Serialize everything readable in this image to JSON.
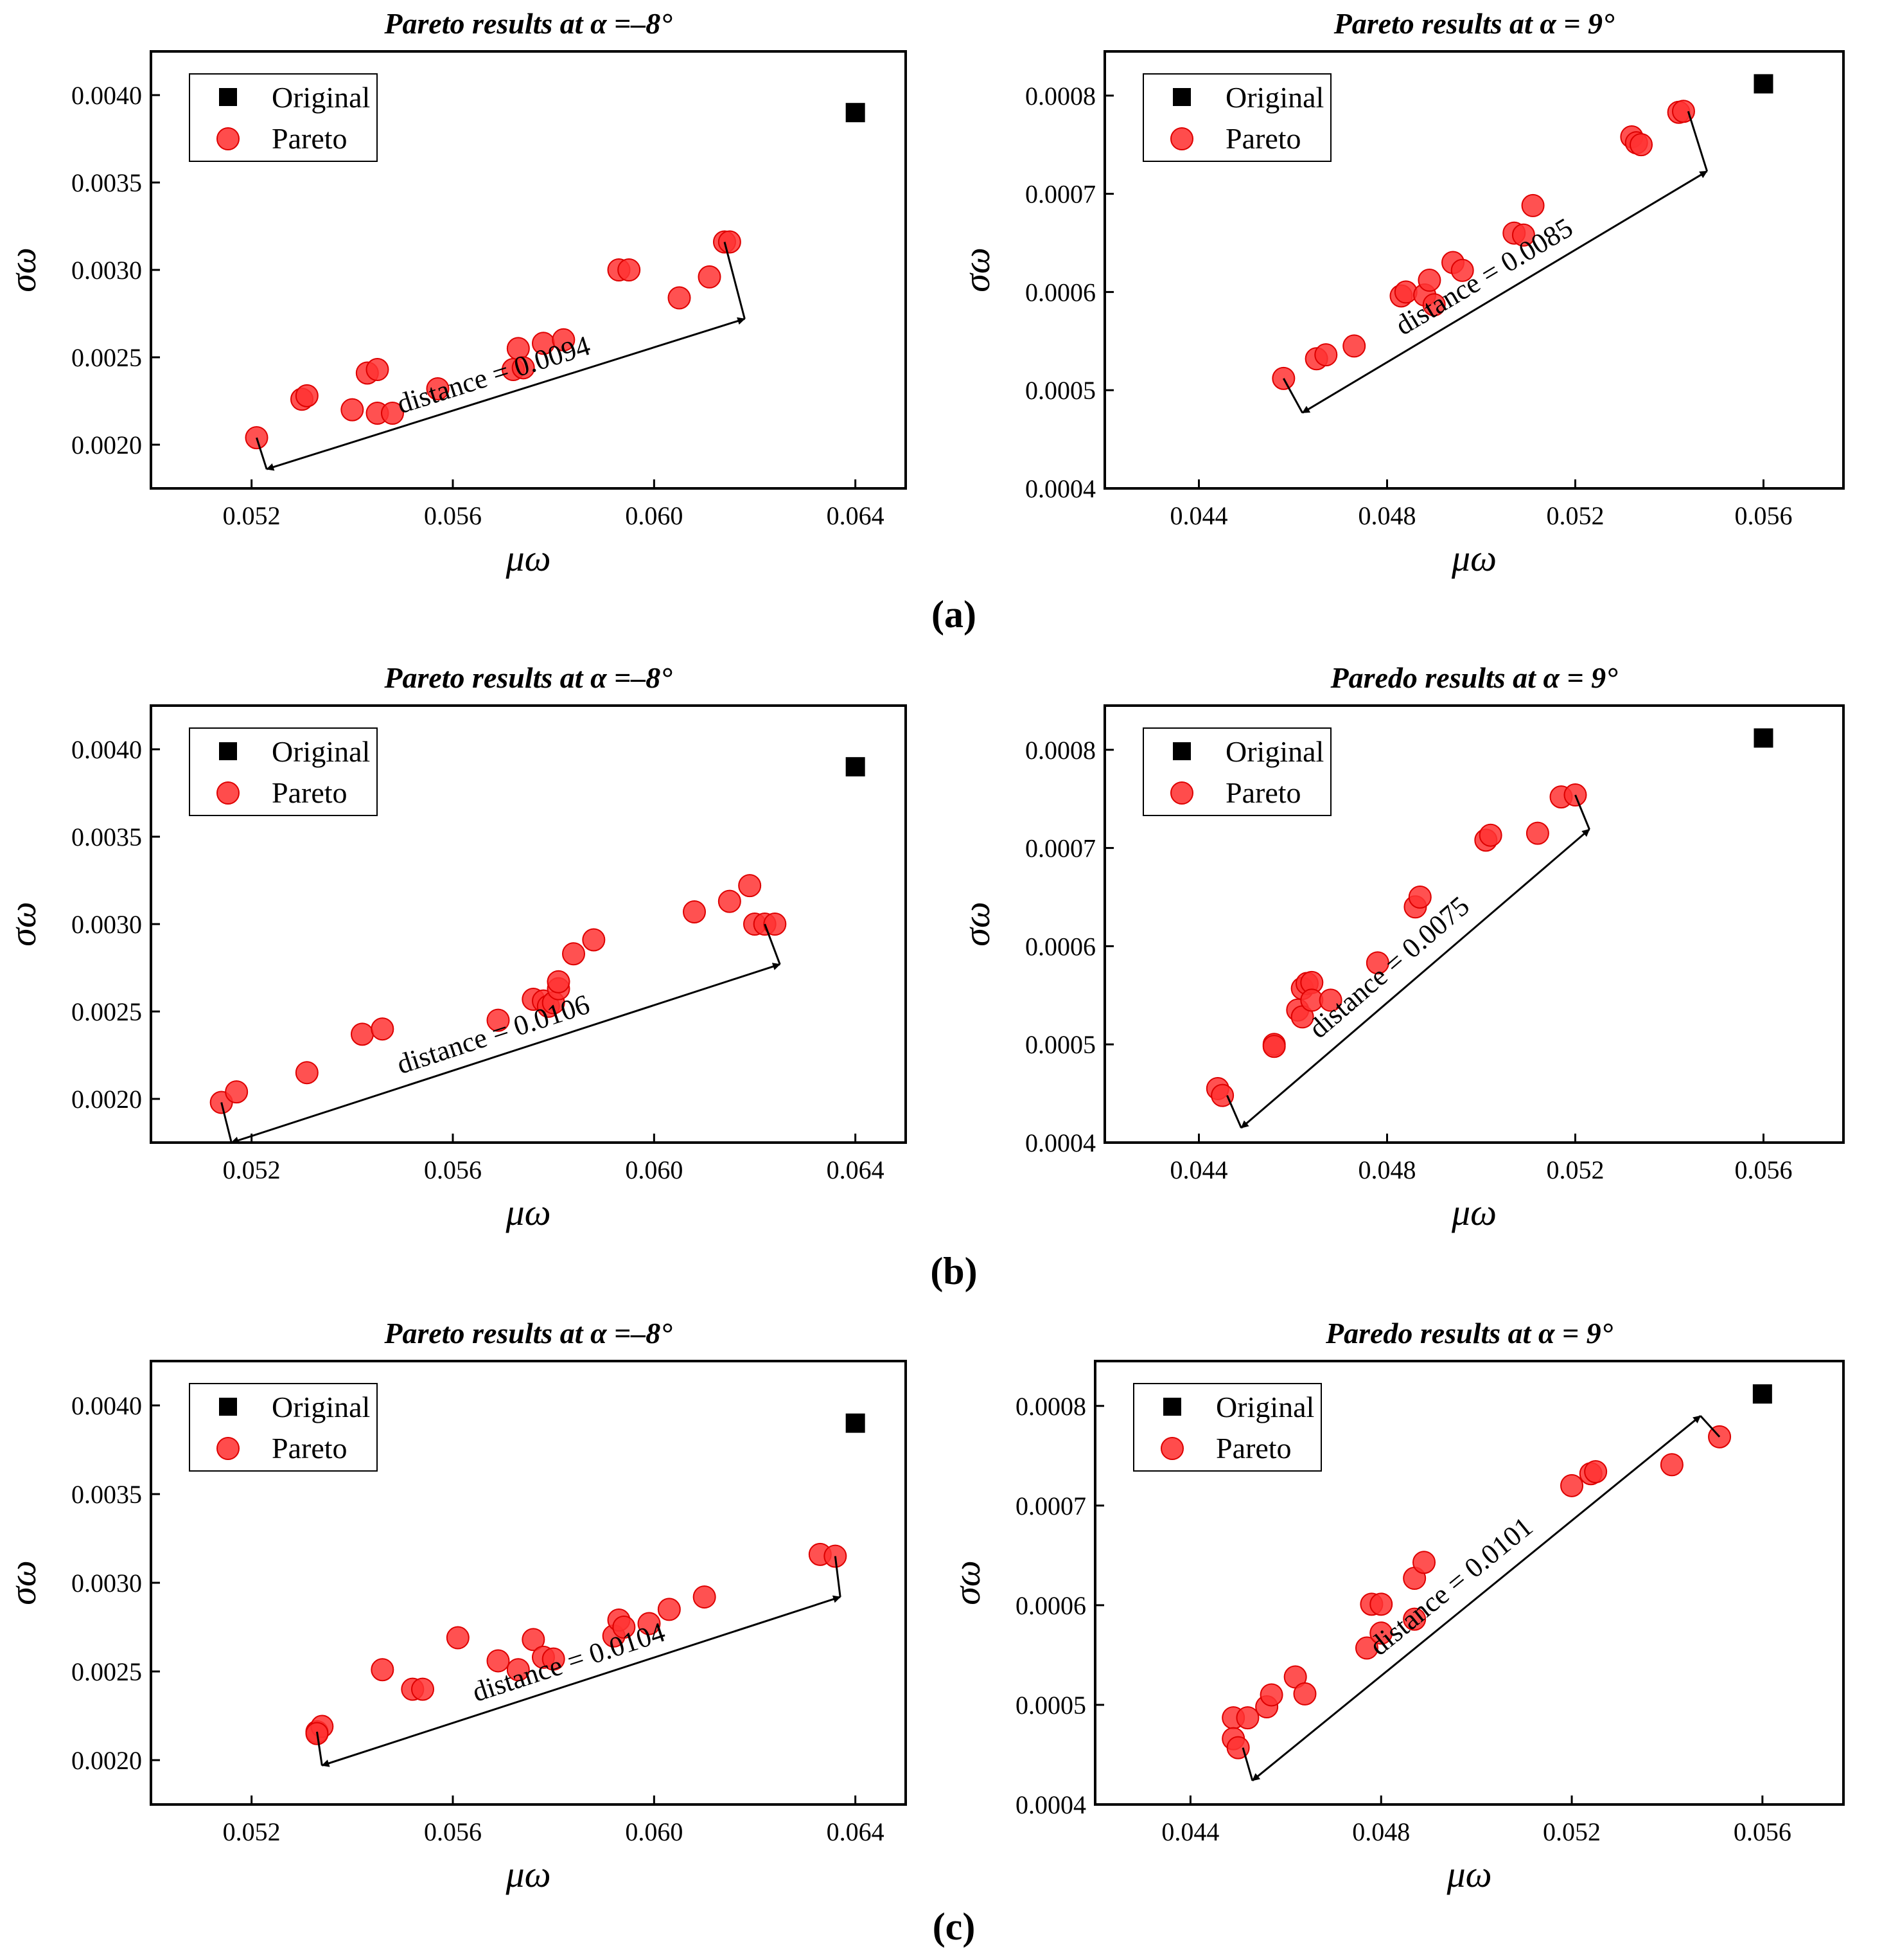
{
  "panel_labels": [
    "(a)",
    "(b)",
    "(c)"
  ],
  "chart_data": [
    {
      "type": "scatter",
      "title": "Pareto results at α =–8°",
      "xlabel": "μω",
      "ylabel": "σω",
      "xlim": [
        0.05,
        0.065
      ],
      "ylim": [
        0.00175,
        0.00425
      ],
      "xticks": [
        "0.052",
        "0.056",
        "0.060",
        "0.064"
      ],
      "yticks": [
        "0.0020",
        "0.0025",
        "0.0030",
        "0.0035",
        "0.0040"
      ],
      "legend": {
        "position": "top-left",
        "original": "Original",
        "pareto": "Pareto"
      },
      "original_point": [
        0.064,
        0.0039
      ],
      "pareto_points": [
        [
          0.0521,
          0.00204
        ],
        [
          0.053,
          0.00226
        ],
        [
          0.0531,
          0.00228
        ],
        [
          0.054,
          0.0022
        ],
        [
          0.0543,
          0.00241
        ],
        [
          0.0545,
          0.00243
        ],
        [
          0.0545,
          0.00218
        ],
        [
          0.0548,
          0.00218
        ],
        [
          0.0557,
          0.00232
        ],
        [
          0.0572,
          0.00243
        ],
        [
          0.0573,
          0.00255
        ],
        [
          0.0574,
          0.00244
        ],
        [
          0.0578,
          0.00258
        ],
        [
          0.0582,
          0.0026
        ],
        [
          0.0593,
          0.003
        ],
        [
          0.0595,
          0.003
        ],
        [
          0.0605,
          0.00284
        ],
        [
          0.0611,
          0.00296
        ],
        [
          0.0614,
          0.00316
        ],
        [
          0.0615,
          0.00316
        ]
      ],
      "distance_label": "distance = 0.0094",
      "arrow": {
        "from": [
          0.0523,
          0.00186
        ],
        "to": [
          0.0618,
          0.00272
        ],
        "tick_ends": [
          [
            0.0521,
            0.00204
          ],
          [
            0.0614,
            0.00316
          ]
        ]
      }
    },
    {
      "type": "scatter",
      "title": "Pareto results at α = 9°",
      "xlabel": "μω",
      "ylabel": "σω",
      "xlim": [
        0.042,
        0.0577
      ],
      "ylim": [
        0.0004,
        0.000845
      ],
      "xticks": [
        "0.044",
        "0.048",
        "0.052",
        "0.056"
      ],
      "yticks": [
        "0.0004",
        "0.0005",
        "0.0006",
        "0.0007",
        "0.0008"
      ],
      "legend": {
        "position": "top-left",
        "original": "Original",
        "pareto": "Pareto"
      },
      "original_point": [
        0.056,
        0.000812
      ],
      "pareto_points": [
        [
          0.0458,
          0.000512
        ],
        [
          0.0465,
          0.000532
        ],
        [
          0.0467,
          0.000536
        ],
        [
          0.0473,
          0.000545
        ],
        [
          0.0483,
          0.000596
        ],
        [
          0.0484,
          0.0006
        ],
        [
          0.0488,
          0.000597
        ],
        [
          0.0489,
          0.000612
        ],
        [
          0.049,
          0.000587
        ],
        [
          0.0494,
          0.00063
        ],
        [
          0.0496,
          0.000622
        ],
        [
          0.0507,
          0.00066
        ],
        [
          0.0509,
          0.000658
        ],
        [
          0.0511,
          0.000688
        ],
        [
          0.0532,
          0.000758
        ],
        [
          0.0533,
          0.000752
        ],
        [
          0.0534,
          0.00075
        ],
        [
          0.0542,
          0.000783
        ],
        [
          0.0543,
          0.000784
        ]
      ],
      "distance_label": "distance = 0.0085",
      "arrow": {
        "from": [
          0.0462,
          0.000477
        ],
        "to": [
          0.0548,
          0.000723
        ],
        "tick_ends": [
          [
            0.0458,
            0.000512
          ],
          [
            0.0544,
            0.000784
          ]
        ]
      }
    },
    {
      "type": "scatter",
      "title": "Pareto results at α =–8°",
      "xlabel": "μω",
      "ylabel": "σω",
      "xlim": [
        0.05,
        0.065
      ],
      "ylim": [
        0.00175,
        0.00425
      ],
      "xticks": [
        "0.052",
        "0.056",
        "0.060",
        "0.064"
      ],
      "yticks": [
        "0.0020",
        "0.0025",
        "0.0030",
        "0.0035",
        "0.0040"
      ],
      "legend": {
        "position": "top-left",
        "original": "Original",
        "pareto": "Pareto"
      },
      "original_point": [
        0.064,
        0.0039
      ],
      "pareto_points": [
        [
          0.0514,
          0.00198
        ],
        [
          0.0517,
          0.00204
        ],
        [
          0.0531,
          0.00215
        ],
        [
          0.0542,
          0.00237
        ],
        [
          0.0546,
          0.0024
        ],
        [
          0.0569,
          0.00245
        ],
        [
          0.0576,
          0.00257
        ],
        [
          0.0578,
          0.00256
        ],
        [
          0.0579,
          0.00253
        ],
        [
          0.058,
          0.00255
        ],
        [
          0.0581,
          0.00263
        ],
        [
          0.0581,
          0.00267
        ],
        [
          0.0584,
          0.00283
        ],
        [
          0.0588,
          0.00291
        ],
        [
          0.0608,
          0.00307
        ],
        [
          0.0615,
          0.00313
        ],
        [
          0.0619,
          0.00322
        ],
        [
          0.062,
          0.003
        ],
        [
          0.0622,
          0.003
        ],
        [
          0.0624,
          0.003
        ]
      ],
      "distance_label": "distance = 0.0106",
      "arrow": {
        "from": [
          0.0516,
          0.00175
        ],
        "to": [
          0.0625,
          0.00277
        ],
        "tick_ends": [
          [
            0.0514,
            0.00198
          ],
          [
            0.0622,
            0.003
          ]
        ]
      }
    },
    {
      "type": "scatter",
      "title": "Paredo results at α = 9°",
      "xlabel": "μω",
      "ylabel": "σω",
      "xlim": [
        0.042,
        0.0577
      ],
      "ylim": [
        0.0004,
        0.000845
      ],
      "xticks": [
        "0.044",
        "0.048",
        "0.052",
        "0.056"
      ],
      "yticks": [
        "0.0004",
        "0.0005",
        "0.0006",
        "0.0007",
        "0.0008"
      ],
      "legend": {
        "position": "top-left",
        "original": "Original",
        "pareto": "Pareto"
      },
      "original_point": [
        0.056,
        0.000812
      ],
      "pareto_points": [
        [
          0.0444,
          0.000455
        ],
        [
          0.0445,
          0.000448
        ],
        [
          0.0456,
          0.0005
        ],
        [
          0.0456,
          0.000498
        ],
        [
          0.0461,
          0.000535
        ],
        [
          0.0462,
          0.000528
        ],
        [
          0.0462,
          0.000557
        ],
        [
          0.0463,
          0.000562
        ],
        [
          0.0464,
          0.000563
        ],
        [
          0.0464,
          0.000545
        ],
        [
          0.0468,
          0.000545
        ],
        [
          0.0478,
          0.000583
        ],
        [
          0.0486,
          0.00064
        ],
        [
          0.0487,
          0.00065
        ],
        [
          0.0501,
          0.000708
        ],
        [
          0.0502,
          0.000713
        ],
        [
          0.0512,
          0.000715
        ],
        [
          0.0517,
          0.000752
        ],
        [
          0.052,
          0.000754
        ]
      ],
      "distance_label": "distance = 0.0075",
      "arrow": {
        "from": [
          0.0449,
          0.000415
        ],
        "to": [
          0.0523,
          0.000719
        ],
        "tick_ends": [
          [
            0.0446,
            0.000448
          ],
          [
            0.052,
            0.000754
          ]
        ]
      }
    },
    {
      "type": "scatter",
      "title": "Pareto results at α =–8°",
      "xlabel": "μω",
      "ylabel": "σω",
      "xlim": [
        0.05,
        0.065
      ],
      "ylim": [
        0.00175,
        0.00425
      ],
      "xticks": [
        "0.052",
        "0.056",
        "0.060",
        "0.064"
      ],
      "yticks": [
        "0.0020",
        "0.0025",
        "0.0030",
        "0.0035",
        "0.0040"
      ],
      "legend": {
        "position": "top-left",
        "original": "Original",
        "pareto": "Pareto"
      },
      "original_point": [
        0.064,
        0.0039
      ],
      "pareto_points": [
        [
          0.0533,
          0.00216
        ],
        [
          0.0534,
          0.00219
        ],
        [
          0.0533,
          0.00215
        ],
        [
          0.0546,
          0.00251
        ],
        [
          0.0552,
          0.0024
        ],
        [
          0.0554,
          0.0024
        ],
        [
          0.0561,
          0.00269
        ],
        [
          0.0569,
          0.00256
        ],
        [
          0.0573,
          0.00251
        ],
        [
          0.0576,
          0.00268
        ],
        [
          0.0578,
          0.00258
        ],
        [
          0.058,
          0.00257
        ],
        [
          0.0592,
          0.0027
        ],
        [
          0.0593,
          0.00279
        ],
        [
          0.0594,
          0.00275
        ],
        [
          0.0599,
          0.00277
        ],
        [
          0.0603,
          0.00285
        ],
        [
          0.061,
          0.00292
        ],
        [
          0.0633,
          0.00316
        ],
        [
          0.0636,
          0.00315
        ]
      ],
      "distance_label": "distance = 0.0104",
      "arrow": {
        "from": [
          0.0534,
          0.00197
        ],
        "to": [
          0.0637,
          0.00292
        ],
        "tick_ends": [
          [
            0.0533,
            0.00216
          ],
          [
            0.0636,
            0.00315
          ]
        ]
      }
    },
    {
      "type": "scatter",
      "title": "Paredo results at α = 9°",
      "xlabel": "μω",
      "ylabel": "σω",
      "xlim": [
        0.042,
        0.0577
      ],
      "ylim": [
        0.0004,
        0.000845
      ],
      "xticks": [
        "0.044",
        "0.048",
        "0.052",
        "0.056"
      ],
      "yticks": [
        "0.0004",
        "0.0005",
        "0.0006",
        "0.0007",
        "0.0008"
      ],
      "legend": {
        "position": "top-left",
        "original": "Original",
        "pareto": "Pareto"
      },
      "original_point": [
        0.056,
        0.000812
      ],
      "pareto_points": [
        [
          0.0449,
          0.000487
        ],
        [
          0.0449,
          0.000466
        ],
        [
          0.045,
          0.000457
        ],
        [
          0.0452,
          0.000487
        ],
        [
          0.0456,
          0.000498
        ],
        [
          0.0457,
          0.00051
        ],
        [
          0.0462,
          0.000528
        ],
        [
          0.0464,
          0.000511
        ],
        [
          0.0477,
          0.000557
        ],
        [
          0.0478,
          0.000601
        ],
        [
          0.048,
          0.000601
        ],
        [
          0.048,
          0.000572
        ],
        [
          0.0487,
          0.000586
        ],
        [
          0.0487,
          0.000627
        ],
        [
          0.0489,
          0.000643
        ],
        [
          0.052,
          0.00072
        ],
        [
          0.0524,
          0.000732
        ],
        [
          0.0525,
          0.000734
        ],
        [
          0.0541,
          0.000741
        ],
        [
          0.0551,
          0.000769
        ]
      ],
      "distance_label": "distance = 0.0101",
      "arrow": {
        "from": [
          0.0453,
          0.000424
        ],
        "to": [
          0.0547,
          0.00079
        ],
        "tick_ends": [
          [
            0.0451,
            0.000457
          ],
          [
            0.0551,
            0.000769
          ]
        ]
      }
    }
  ]
}
